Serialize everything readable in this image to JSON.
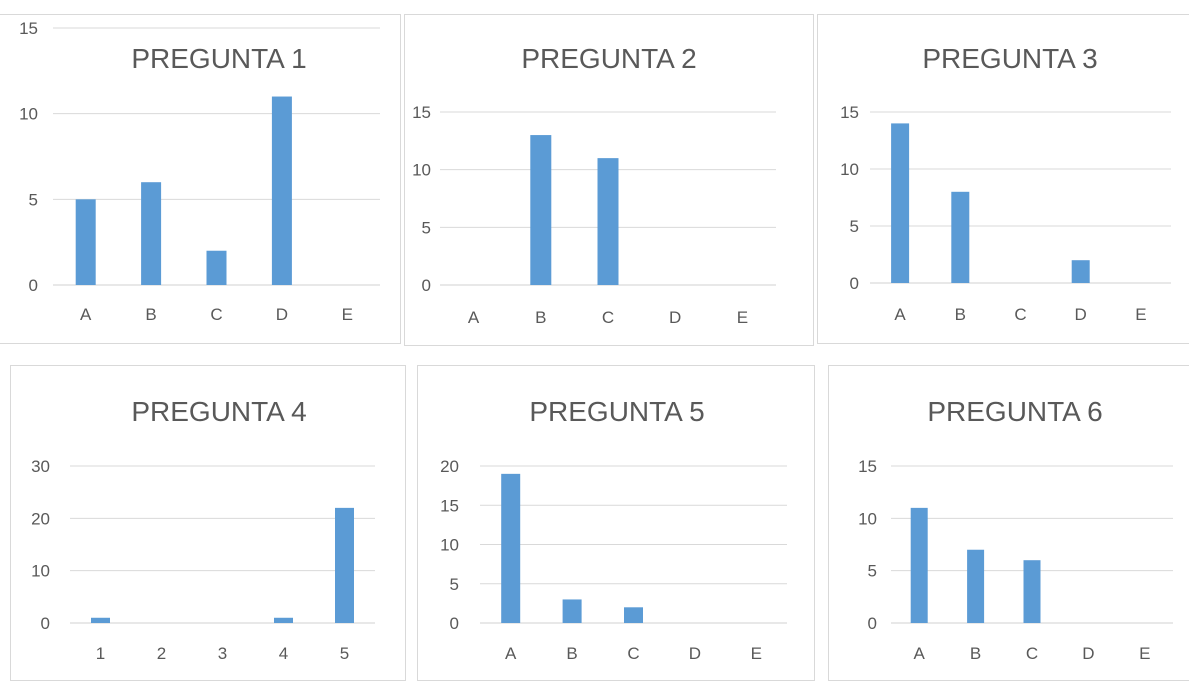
{
  "chart_data": [
    {
      "type": "bar",
      "title": "PREGUNTA 1",
      "categories": [
        "A",
        "B",
        "C",
        "D",
        "E"
      ],
      "values": [
        5,
        6,
        2,
        11,
        0
      ],
      "yticks": [
        0,
        5,
        10,
        15
      ],
      "ylim": [
        0,
        15
      ],
      "grid": true,
      "bar_color": "#5b9bd5"
    },
    {
      "type": "bar",
      "title": "PREGUNTA 2",
      "categories": [
        "A",
        "B",
        "C",
        "D",
        "E"
      ],
      "values": [
        0,
        13,
        11,
        0,
        0
      ],
      "yticks": [
        0,
        5,
        10,
        15
      ],
      "ylim": [
        0,
        15
      ],
      "grid": true,
      "bar_color": "#5b9bd5"
    },
    {
      "type": "bar",
      "title": "PREGUNTA 3",
      "categories": [
        "A",
        "B",
        "C",
        "D",
        "E"
      ],
      "values": [
        14,
        8,
        0,
        2,
        0
      ],
      "yticks": [
        0,
        5,
        10,
        15
      ],
      "ylim": [
        0,
        15
      ],
      "grid": true,
      "bar_color": "#5b9bd5"
    },
    {
      "type": "bar",
      "title": "PREGUNTA 4",
      "categories": [
        "1",
        "2",
        "3",
        "4",
        "5"
      ],
      "values": [
        1,
        0,
        0,
        1,
        22
      ],
      "yticks": [
        0,
        10,
        20,
        30
      ],
      "ylim": [
        0,
        30
      ],
      "grid": true,
      "bar_color": "#5b9bd5"
    },
    {
      "type": "bar",
      "title": "PREGUNTA 5",
      "categories": [
        "A",
        "B",
        "C",
        "D",
        "E"
      ],
      "values": [
        19,
        3,
        2,
        0,
        0
      ],
      "yticks": [
        0,
        5,
        10,
        15,
        20
      ],
      "ylim": [
        0,
        20
      ],
      "grid": true,
      "bar_color": "#5b9bd5"
    },
    {
      "type": "bar",
      "title": "PREGUNTA 6",
      "categories": [
        "A",
        "B",
        "C",
        "D",
        "E"
      ],
      "values": [
        11,
        7,
        6,
        0,
        0
      ],
      "yticks": [
        0,
        5,
        10,
        15
      ],
      "ylim": [
        0,
        15
      ],
      "grid": true,
      "bar_color": "#5b9bd5"
    }
  ]
}
